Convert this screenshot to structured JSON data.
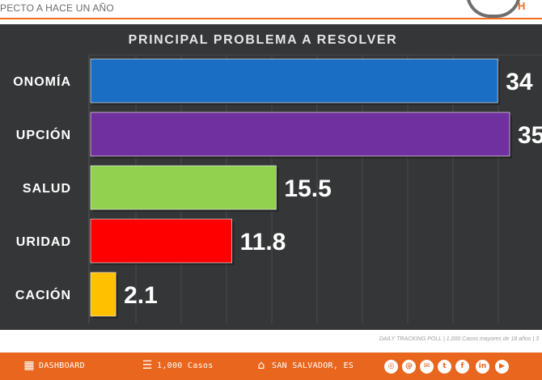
{
  "header": {
    "title": "PECTO A HACE UN AÑO",
    "logo_fragment": "H"
  },
  "chart_data": {
    "type": "bar",
    "orientation": "horizontal",
    "title": "PRINCIPAL PROBLEMA A RESOLVER",
    "categories": [
      "ONOMÍA",
      "UPCIÓN",
      "SALUD",
      "URIDAD",
      "CACIÓN"
    ],
    "values": [
      34,
      35,
      15.5,
      11.8,
      2.1
    ],
    "value_labels": [
      "34",
      "35",
      "15.5",
      "11.8",
      "2.1"
    ],
    "colors": [
      "#1a6fc4",
      "#7030a0",
      "#92d050",
      "#ff0000",
      "#ffc000"
    ],
    "xlim": [
      0,
      35
    ],
    "grid": true,
    "background": "#353637"
  },
  "footnote": "DAILY TRACKING POLL | 1,000 Casos mayores de 18 años | 3",
  "footer": {
    "dashboard": "DASHBOARD",
    "cases": "1,000 Casos",
    "location": "SAN SALVADOR, ES",
    "icons": [
      "dashboard-icon",
      "chat-icon",
      "location-icon",
      "globe-icon",
      "whatsapp-icon",
      "email-icon",
      "twitter-icon",
      "facebook-icon",
      "linkedin-icon",
      "youtube-icon"
    ],
    "social": [
      "@",
      "✉",
      "t",
      "f",
      "in",
      "▶"
    ]
  }
}
